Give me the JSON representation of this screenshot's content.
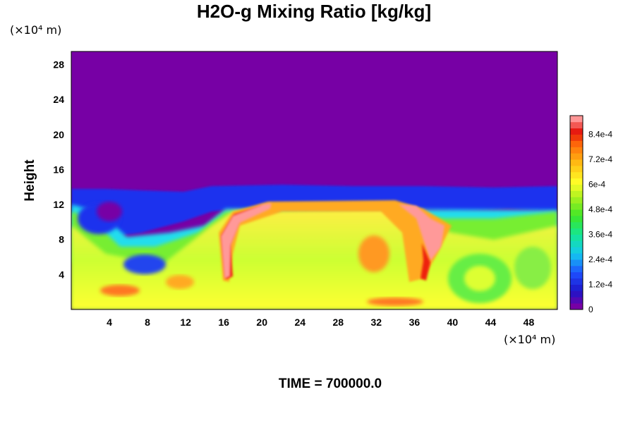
{
  "chart_data": {
    "type": "heatmap",
    "title": "H2O-g Mixing Ratio [kg/kg]",
    "xlabel": "",
    "ylabel": "Height",
    "x_unit": "(×10⁴ m)",
    "y_unit": "(×10⁴ m)",
    "x_ticks": [
      "4",
      "8",
      "12",
      "16",
      "20",
      "24",
      "28",
      "32",
      "36",
      "40",
      "44",
      "48"
    ],
    "y_ticks": [
      "4",
      "8",
      "12",
      "16",
      "20",
      "24",
      "28"
    ],
    "xlim": [
      0,
      51
    ],
    "ylim": [
      0,
      29.5
    ],
    "colorbar": {
      "min": 0,
      "max": 0.00093,
      "tick_labels": [
        "0",
        "1.2e-4",
        "2.4e-4",
        "3.6e-4",
        "4.8e-4",
        "6e-4",
        "7.2e-4",
        "8.4e-4"
      ]
    },
    "field_summary": {
      "background_above_km_x10_4": 14,
      "background_value": 0,
      "moist_layer_top": 14,
      "low_level_typical_value": 0.0006,
      "peak_value": 0.00093
    },
    "annotation": "TIME = 700000.0"
  }
}
